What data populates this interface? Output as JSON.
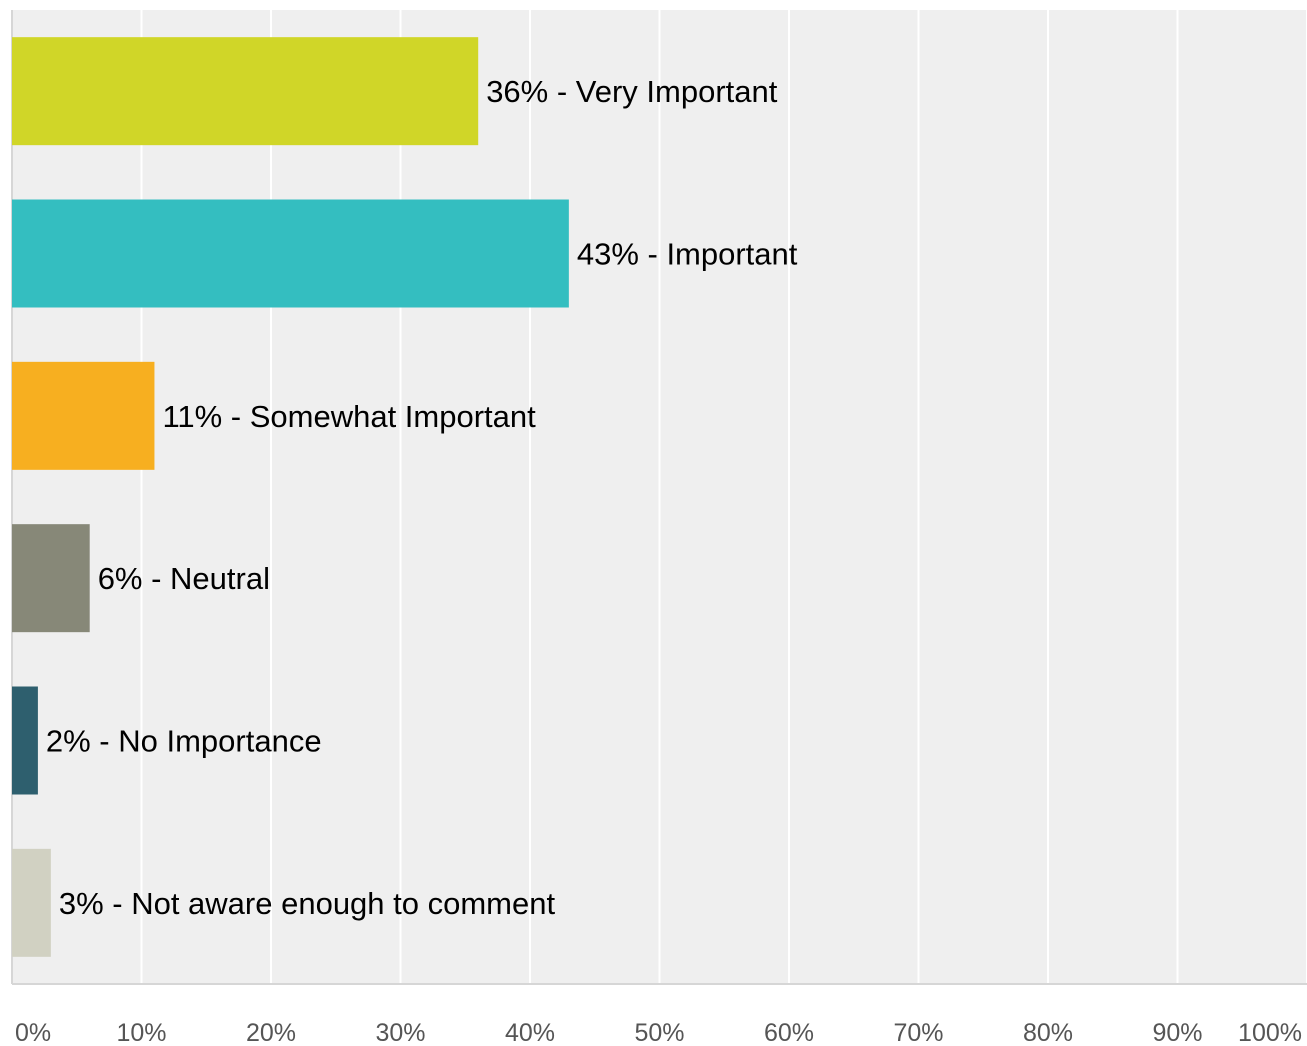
{
  "chart_data": {
    "type": "bar",
    "orientation": "horizontal",
    "categories": [
      "Very Important",
      "Important",
      "Somewhat Important",
      "Neutral",
      "No Importance",
      "Not aware enough to comment"
    ],
    "values": [
      36,
      43,
      11,
      6,
      2,
      3
    ],
    "labels": [
      "36% - Very Important",
      "43% - Important",
      "11% - Somewhat Important",
      "6% - Neutral",
      "2% - No Importance",
      "3% - Not aware enough to comment"
    ],
    "colors": [
      "#D0D628",
      "#34BEC0",
      "#F7AF20",
      "#878878",
      "#2E5F6E",
      "#D1D1C2"
    ],
    "xlim": [
      0,
      100
    ],
    "x_ticks": [
      "0%",
      "10%",
      "20%",
      "30%",
      "40%",
      "50%",
      "60%",
      "70%",
      "80%",
      "90%",
      "100%"
    ],
    "grid": true,
    "background_color": "#EFEFEF"
  }
}
